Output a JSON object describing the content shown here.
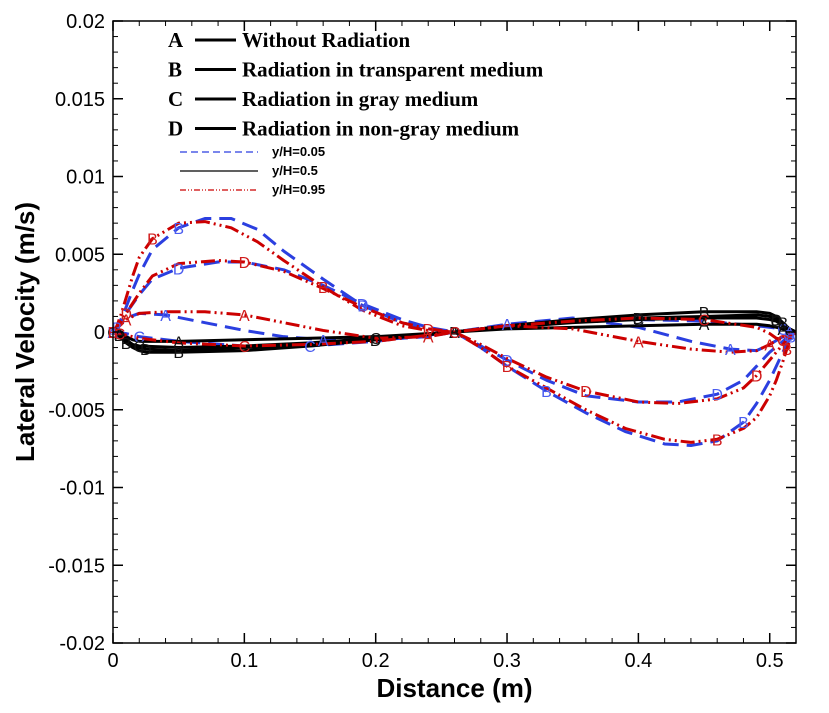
{
  "chart_data": {
    "type": "line",
    "title": "",
    "xlabel": "Distance (m)",
    "ylabel": "Lateral Velocity (m/s)",
    "xlim": [
      0,
      0.52
    ],
    "ylim": [
      -0.02,
      0.02
    ],
    "xticks": [
      0,
      0.1,
      0.2,
      0.3,
      0.4,
      0.5
    ],
    "xtick_labels": [
      "0",
      "0.1",
      "0.2",
      "0.3",
      "0.4",
      "0.5"
    ],
    "yticks": [
      -0.02,
      -0.015,
      -0.01,
      -0.005,
      0,
      0.005,
      0.01,
      0.015,
      0.02
    ],
    "ytick_labels": [
      "-0.02",
      "-0.015",
      "-0.01",
      "-0.005",
      "0",
      "0.005",
      "0.01",
      "0.015",
      "0.02"
    ],
    "grid": false,
    "legend_cases": [
      {
        "letter": "A",
        "label": "Without Radiation"
      },
      {
        "letter": "B",
        "label": "Radiation in transparent medium"
      },
      {
        "letter": "C",
        "label": "Radiation in gray medium"
      },
      {
        "letter": "D",
        "label": "Radiation in non-gray medium"
      }
    ],
    "legend_positions": [
      {
        "label": "y/H=0.05",
        "color": "#2b3fe0",
        "dash": "dashed"
      },
      {
        "label": "y/H=0.5",
        "color": "#000000",
        "dash": "solid"
      },
      {
        "label": "y/H=0.95",
        "color": "#cc0000",
        "dash": "dashdotdot"
      }
    ],
    "series": [
      {
        "name": "A y/H=0.05",
        "case": "A",
        "color": "#2b3fe0",
        "dash": "dashed",
        "x": [
          0,
          0.005,
          0.01,
          0.02,
          0.04,
          0.07,
          0.1,
          0.13,
          0.16,
          0.2,
          0.24,
          0.26,
          0.3,
          0.35,
          0.4,
          0.44,
          0.47,
          0.49,
          0.5,
          0.51,
          0.515
        ],
        "y": [
          0,
          0.0004,
          0.0009,
          0.0012,
          0.0011,
          0.0006,
          0.0001,
          -0.0003,
          -0.0005,
          -0.0005,
          -0.0003,
          0,
          0.0005,
          0.0009,
          0.0003,
          -0.0006,
          -0.0011,
          -0.0012,
          -0.0008,
          -0.0003,
          0
        ]
      },
      {
        "name": "B y/H=0.05",
        "case": "B",
        "color": "#2b3fe0",
        "dash": "dashed",
        "x": [
          0,
          0.003,
          0.006,
          0.01,
          0.015,
          0.02,
          0.03,
          0.05,
          0.07,
          0.09,
          0.11,
          0.13,
          0.16,
          0.19,
          0.22,
          0.24,
          0.26,
          0.28,
          0.3,
          0.33,
          0.36,
          0.39,
          0.42,
          0.44,
          0.46,
          0.48,
          0.49,
          0.5,
          0.505,
          0.51,
          0.513,
          0.516,
          0.52
        ],
        "y": [
          0,
          0.0003,
          0.0008,
          0.0016,
          0.0027,
          0.0037,
          0.0053,
          0.0067,
          0.0073,
          0.0073,
          0.0066,
          0.0052,
          0.0034,
          0.0017,
          0.0006,
          0.0002,
          0,
          -0.001,
          -0.0022,
          -0.0038,
          -0.0052,
          -0.0064,
          -0.0072,
          -0.0073,
          -0.007,
          -0.0058,
          -0.0046,
          -0.0031,
          -0.0022,
          -0.0013,
          -0.0008,
          -0.0003,
          0
        ]
      },
      {
        "name": "C y/H=0.05",
        "case": "C",
        "color": "#2b3fe0",
        "dash": "dashed",
        "x": [
          0,
          0.01,
          0.02,
          0.05,
          0.1,
          0.15,
          0.2,
          0.24,
          0.26,
          0.3,
          0.35,
          0.4,
          0.45,
          0.49,
          0.51,
          0.52
        ],
        "y": [
          0,
          -0.0001,
          -0.0003,
          -0.0006,
          -0.0009,
          -0.0009,
          -0.0006,
          -0.0002,
          0,
          0.0004,
          0.0007,
          0.0008,
          0.0007,
          0.0004,
          0.0002,
          0
        ]
      },
      {
        "name": "D y/H=0.05",
        "case": "D",
        "color": "#2b3fe0",
        "dash": "dashed",
        "x": [
          0,
          0.005,
          0.01,
          0.02,
          0.03,
          0.05,
          0.08,
          0.1,
          0.13,
          0.16,
          0.19,
          0.22,
          0.24,
          0.26,
          0.28,
          0.3,
          0.33,
          0.36,
          0.4,
          0.43,
          0.46,
          0.48,
          0.49,
          0.5,
          0.51,
          0.515,
          0.52
        ],
        "y": [
          0,
          0.0005,
          0.0012,
          0.0024,
          0.0034,
          0.0041,
          0.0045,
          0.0045,
          0.004,
          0.003,
          0.0018,
          0.0008,
          0.0003,
          0,
          -0.0009,
          -0.0018,
          -0.0031,
          -0.0041,
          -0.0045,
          -0.0045,
          -0.004,
          -0.0031,
          -0.0022,
          -0.0013,
          -0.0006,
          -0.0002,
          0
        ]
      },
      {
        "name": "A y/H=0.5",
        "case": "A",
        "color": "#000000",
        "dash": "solid",
        "x": [
          0,
          0.005,
          0.01,
          0.015,
          0.02,
          0.05,
          0.1,
          0.15,
          0.2,
          0.26,
          0.3,
          0.35,
          0.4,
          0.45,
          0.49,
          0.5,
          0.505,
          0.51,
          0.515,
          0.52
        ],
        "y": [
          0,
          -0.0001,
          -0.0003,
          -0.0005,
          -0.0006,
          -0.0006,
          -0.0005,
          -0.0004,
          -0.0003,
          0,
          0.0002,
          0.0003,
          0.0004,
          0.0005,
          0.0005,
          0.0004,
          0.0003,
          0.0002,
          0.0001,
          0
        ]
      },
      {
        "name": "B y/H=0.5",
        "case": "B",
        "color": "#000000",
        "dash": "solid",
        "x": [
          0,
          0.005,
          0.01,
          0.015,
          0.02,
          0.025,
          0.05,
          0.1,
          0.15,
          0.2,
          0.26,
          0.3,
          0.35,
          0.4,
          0.45,
          0.49,
          0.5,
          0.505,
          0.51,
          0.515,
          0.52
        ],
        "y": [
          0,
          -0.0003,
          -0.0007,
          -0.001,
          -0.0012,
          -0.0013,
          -0.0013,
          -0.0012,
          -0.0009,
          -0.0005,
          0,
          0.0004,
          0.0008,
          0.0011,
          0.0013,
          0.0013,
          0.0012,
          0.001,
          0.0006,
          0.0002,
          0
        ]
      },
      {
        "name": "C y/H=0.5",
        "case": "C",
        "color": "#000000",
        "dash": "solid",
        "x": [
          0,
          0.005,
          0.01,
          0.015,
          0.02,
          0.05,
          0.1,
          0.15,
          0.2,
          0.26,
          0.3,
          0.35,
          0.4,
          0.45,
          0.49,
          0.5,
          0.505,
          0.51,
          0.515,
          0.52
        ],
        "y": [
          0,
          -0.0002,
          -0.0005,
          -0.0008,
          -0.0009,
          -0.001,
          -0.0009,
          -0.0007,
          -0.0004,
          0,
          0.0003,
          0.0006,
          0.0008,
          0.0009,
          0.0009,
          0.0008,
          0.0007,
          0.0004,
          0.0002,
          0
        ]
      },
      {
        "name": "D y/H=0.5",
        "case": "D",
        "color": "#000000",
        "dash": "solid",
        "x": [
          0,
          0.005,
          0.01,
          0.015,
          0.02,
          0.025,
          0.05,
          0.1,
          0.15,
          0.2,
          0.26,
          0.3,
          0.35,
          0.4,
          0.45,
          0.49,
          0.5,
          0.505,
          0.51,
          0.515,
          0.52
        ],
        "y": [
          0,
          -0.0002,
          -0.0006,
          -0.0009,
          -0.001,
          -0.0011,
          -0.0012,
          -0.001,
          -0.0008,
          -0.0005,
          0,
          0.0004,
          0.0007,
          0.0009,
          0.001,
          0.0011,
          0.001,
          0.0008,
          0.0005,
          0.0002,
          0
        ]
      },
      {
        "name": "A y/H=0.95",
        "case": "A",
        "color": "#cc0000",
        "dash": "dashdotdot",
        "x": [
          0,
          0.005,
          0.01,
          0.02,
          0.04,
          0.07,
          0.1,
          0.13,
          0.16,
          0.2,
          0.24,
          0.26,
          0.3,
          0.35,
          0.4,
          0.44,
          0.47,
          0.49,
          0.5,
          0.51,
          0.515
        ],
        "y": [
          0,
          0.0004,
          0.0008,
          0.0012,
          0.0013,
          0.0013,
          0.0011,
          0.0006,
          0.0001,
          -0.0004,
          -0.0003,
          0,
          0.0004,
          0.0002,
          -0.0006,
          -0.0011,
          -0.0013,
          -0.0012,
          -0.0008,
          -0.0003,
          0
        ]
      },
      {
        "name": "B y/H=0.95",
        "case": "B",
        "color": "#cc0000",
        "dash": "dashdotdot",
        "x": [
          0,
          0.003,
          0.006,
          0.01,
          0.015,
          0.02,
          0.03,
          0.05,
          0.07,
          0.09,
          0.11,
          0.13,
          0.16,
          0.19,
          0.22,
          0.24,
          0.26,
          0.28,
          0.3,
          0.33,
          0.36,
          0.39,
          0.42,
          0.44,
          0.46,
          0.48,
          0.49,
          0.5,
          0.505,
          0.51,
          0.513,
          0.516,
          0.52
        ],
        "y": [
          0,
          0.0004,
          0.0011,
          0.0022,
          0.0036,
          0.0048,
          0.006,
          0.007,
          0.0071,
          0.0067,
          0.0058,
          0.0046,
          0.0029,
          0.0014,
          0.0004,
          0.0001,
          0,
          -0.001,
          -0.0022,
          -0.0036,
          -0.005,
          -0.0062,
          -0.0069,
          -0.0071,
          -0.0069,
          -0.0062,
          -0.0055,
          -0.0041,
          -0.0031,
          -0.0019,
          -0.0011,
          -0.0004,
          0
        ]
      },
      {
        "name": "C y/H=0.95",
        "case": "C",
        "color": "#cc0000",
        "dash": "dashdotdot",
        "x": [
          0,
          0.005,
          0.01,
          0.02,
          0.05,
          0.1,
          0.15,
          0.2,
          0.24,
          0.26,
          0.3,
          0.35,
          0.4,
          0.45,
          0.49,
          0.5,
          0.505,
          0.51,
          0.515,
          0.52
        ],
        "y": [
          0,
          -0.0001,
          -0.0002,
          -0.0004,
          -0.0007,
          -0.0009,
          -0.0008,
          -0.0006,
          -0.0002,
          0,
          0.0004,
          0.0007,
          0.0009,
          0.0008,
          0.0003,
          -0.0001,
          -0.0004,
          -0.0005,
          -0.0003,
          0
        ]
      },
      {
        "name": "D y/H=0.95",
        "case": "D",
        "color": "#cc0000",
        "dash": "dashdotdot",
        "x": [
          0,
          0.005,
          0.01,
          0.02,
          0.03,
          0.05,
          0.08,
          0.1,
          0.13,
          0.16,
          0.19,
          0.22,
          0.24,
          0.26,
          0.28,
          0.3,
          0.33,
          0.36,
          0.4,
          0.43,
          0.46,
          0.48,
          0.49,
          0.5,
          0.51,
          0.515,
          0.52
        ],
        "y": [
          0,
          0.0005,
          0.0012,
          0.0025,
          0.0036,
          0.0044,
          0.0046,
          0.0045,
          0.0039,
          0.0028,
          0.0016,
          0.0006,
          0.0002,
          0,
          -0.0008,
          -0.0017,
          -0.0029,
          -0.0038,
          -0.0045,
          -0.0046,
          -0.0043,
          -0.0036,
          -0.0028,
          -0.0018,
          -0.0008,
          -0.0003,
          0
        ]
      }
    ]
  }
}
